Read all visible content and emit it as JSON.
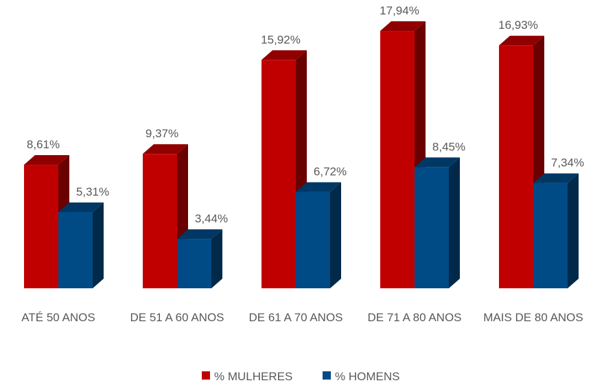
{
  "chart_data": {
    "type": "bar3d",
    "categories": [
      "ATÉ 50 ANOS",
      "DE 51 A 60 ANOS",
      "DE 61 A 70 ANOS",
      "DE 71 A 80 ANOS",
      "MAIS DE 80 ANOS"
    ],
    "series": [
      {
        "name": "% MULHERES",
        "color": "#c00000",
        "values": [
          8.61,
          9.37,
          15.92,
          17.94,
          16.93
        ],
        "value_labels": [
          "8,61%",
          "9,37%",
          "15,92%",
          "17,94%",
          "16,93%"
        ]
      },
      {
        "name": "% HOMENS",
        "color": "#004a86",
        "values": [
          5.31,
          3.44,
          6.72,
          8.45,
          7.34
        ],
        "value_labels": [
          "5,31%",
          "3,44%",
          "6,72%",
          "8,45%",
          "7,34%"
        ]
      }
    ],
    "legend": "bottom"
  }
}
